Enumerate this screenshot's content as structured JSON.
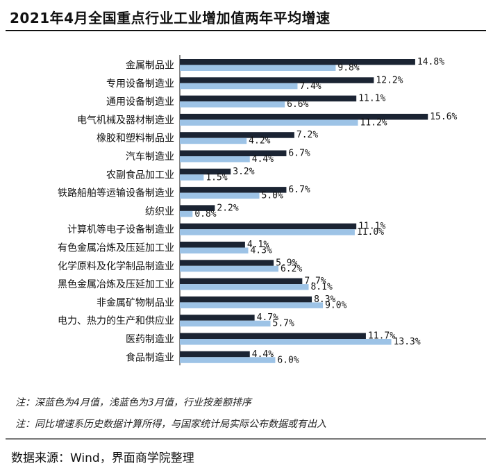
{
  "header": {
    "title": "2021年4月全国重点行业工业增加值两年平均增速"
  },
  "notes": {
    "line1": "注：深蓝色为4月值，浅蓝色为3月值，行业按差额排序",
    "line2": "注：同比增速系历史数据计算所得，与国家统计局实际公布数据或有出入"
  },
  "footer": {
    "source": "数据来源：Wind，界面商学院整理"
  },
  "chart_data": {
    "type": "bar",
    "orientation": "horizontal",
    "categories": [
      "金属制品业",
      "专用设备制造业",
      "通用设备制造业",
      "电气机械及器材制造业",
      "橡胶和塑料制品业",
      "汽车制造业",
      "农副食品加工业",
      "铁路船舶等运输设备制造业",
      "纺织业",
      "计算机等电子设备制造业",
      "有色金属冶炼及压延加工业",
      "化学原料及化学制品制造业",
      "黑色金属冶炼及压延加工业",
      "非金属矿物制品业",
      "电力、热力的生产和供应业",
      "医药制造业",
      "食品制造业"
    ],
    "series": [
      {
        "key": "april",
        "color": "#1b2433",
        "values": [
          14.8,
          12.2,
          11.1,
          15.6,
          7.2,
          6.7,
          3.2,
          6.7,
          2.2,
          11.1,
          4.1,
          5.9,
          7.7,
          8.3,
          4.7,
          11.7,
          4.4
        ]
      },
      {
        "key": "march",
        "color": "#9dc3e6",
        "values": [
          9.8,
          7.4,
          6.6,
          11.2,
          4.2,
          4.4,
          1.5,
          5.0,
          0.8,
          11.0,
          4.3,
          6.2,
          8.1,
          9.0,
          5.7,
          13.3,
          6.0
        ]
      }
    ],
    "value_format": "{v}%",
    "xlim": [
      0,
      16
    ],
    "grid": false,
    "legend": "none"
  }
}
